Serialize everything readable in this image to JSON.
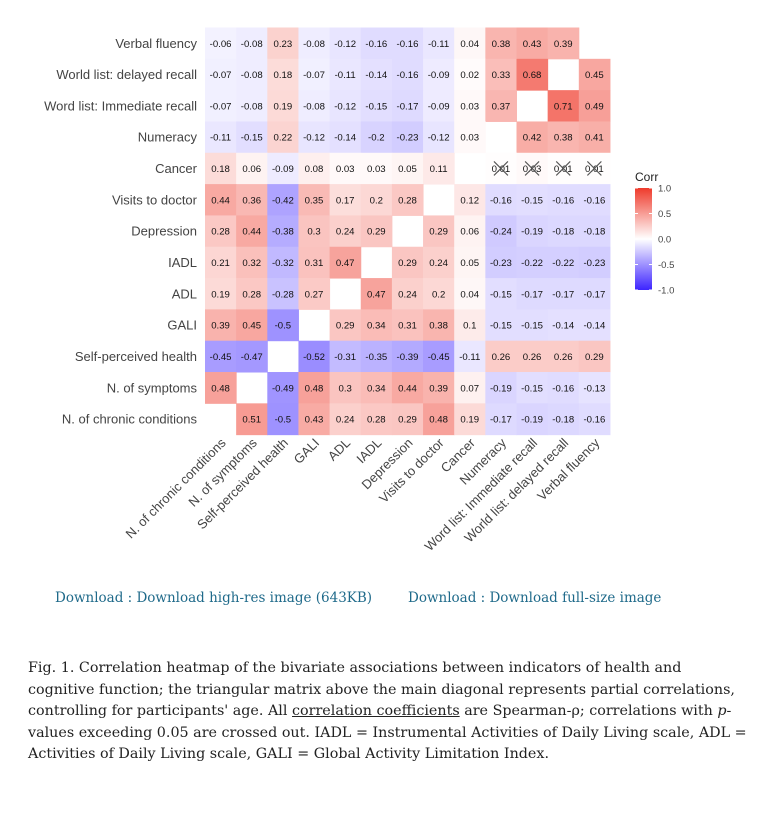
{
  "chart_data": {
    "type": "heatmap",
    "rows": [
      "Verbal fluency",
      "World list: delayed recall",
      "Word list: Immediate recall",
      "Numeracy",
      "Cancer",
      "Visits to doctor",
      "Depression",
      "IADL",
      "ADL",
      "GALI",
      "Self-perceived health",
      "N. of symptoms",
      "N. of chronic conditions"
    ],
    "columns": [
      "N. of chronic conditions",
      "N. of symptoms",
      "Self-perceived health",
      "GALI",
      "ADL",
      "IADL",
      "Depression",
      "Visits to doctor",
      "Cancer",
      "Numeracy",
      "Word list: Immediate recall",
      "World list: delayed recall",
      "Verbal fluency"
    ],
    "cells": [
      [
        "-0.06",
        "-0.08",
        "0.23",
        "-0.08",
        "-0.12",
        "-0.16",
        "-0.16",
        "-0.11",
        "0.04",
        "0.38",
        "0.43",
        "0.39",
        ""
      ],
      [
        "-0.07",
        "-0.08",
        "0.18",
        "-0.07",
        "-0.11",
        "-0.14",
        "-0.16",
        "-0.09",
        "0.02",
        "0.33",
        "0.68",
        "",
        "0.45"
      ],
      [
        "-0.07",
        "-0.08",
        "0.19",
        "-0.08",
        "-0.12",
        "-0.15",
        "-0.17",
        "-0.09",
        "0.03",
        "0.37",
        "",
        "0.71",
        "0.49"
      ],
      [
        "-0.11",
        "-0.15",
        "0.22",
        "-0.12",
        "-0.14",
        "-0.2",
        "-0.23",
        "-0.12",
        "0.03",
        "",
        "0.42",
        "0.38",
        "0.41"
      ],
      [
        "0.18",
        "0.06",
        "-0.09",
        "0.08",
        "0.03",
        "0.03",
        "0.05",
        "0.11",
        "",
        "0.01",
        "0.03",
        "0.01",
        "0.01"
      ],
      [
        "0.44",
        "0.36",
        "-0.42",
        "0.35",
        "0.17",
        "0.2",
        "0.28",
        "",
        "0.12",
        "-0.16",
        "-0.15",
        "-0.16",
        "-0.16"
      ],
      [
        "0.28",
        "0.44",
        "-0.38",
        "0.3",
        "0.24",
        "0.29",
        "",
        "0.29",
        "0.06",
        "-0.24",
        "-0.19",
        "-0.18",
        "-0.18"
      ],
      [
        "0.21",
        "0.32",
        "-0.32",
        "0.31",
        "0.47",
        "",
        "0.29",
        "0.24",
        "0.05",
        "-0.23",
        "-0.22",
        "-0.22",
        "-0.23"
      ],
      [
        "0.19",
        "0.28",
        "-0.28",
        "0.27",
        "",
        "0.47",
        "0.24",
        "0.2",
        "0.04",
        "-0.15",
        "-0.17",
        "-0.17",
        "-0.17"
      ],
      [
        "0.39",
        "0.45",
        "-0.5",
        "",
        "0.29",
        "0.34",
        "0.31",
        "0.38",
        "0.1",
        "-0.15",
        "-0.15",
        "-0.14",
        "-0.14"
      ],
      [
        "-0.45",
        "-0.47",
        "",
        "-0.52",
        "-0.31",
        "-0.35",
        "-0.39",
        "-0.45",
        "-0.11",
        "0.26",
        "0.26",
        "0.26",
        "0.29"
      ],
      [
        "0.48",
        "",
        "-0.49",
        "0.48",
        "0.3",
        "0.34",
        "0.44",
        "0.39",
        "0.07",
        "-0.19",
        "-0.15",
        "-0.16",
        "-0.13"
      ],
      [
        "",
        "0.51",
        "-0.5",
        "0.43",
        "0.24",
        "0.28",
        "0.29",
        "0.48",
        "0.19",
        "-0.17",
        "-0.19",
        "-0.18",
        "-0.16"
      ]
    ],
    "crossed": [
      [
        4,
        9
      ],
      [
        4,
        10
      ],
      [
        4,
        11
      ],
      [
        4,
        12
      ]
    ],
    "legend": {
      "title": "Corr",
      "ticks": [
        "1.0",
        "0.5",
        "0.0",
        "-0.5",
        "-1.0"
      ]
    },
    "colors": {
      "positive": "#ef3b2c",
      "zero": "#ffffff",
      "negative": "#3d24ff",
      "cross": "#555555"
    },
    "range": [
      -1,
      1
    ]
  },
  "links": {
    "high_res": "Download : Download high-res image (643KB)",
    "full_size": "Download : Download full-size image"
  },
  "caption": {
    "part1": "Fig. 1. Correlation heatmap of the bivariate associations between indicators of health and cognitive function; the triangular matrix above the main diagonal represents partial correlations, controlling for participants' age. All ",
    "link": "correlation coefficients",
    "part2": " are Spearman-ρ; correlations with ",
    "p_symbol": "p",
    "part3": "-values exceeding 0.05 are crossed out. IADL = Instrumental Activities of Daily Living scale, ADL = Activities of Daily Living scale, GALI = Global Activity Limitation Index."
  }
}
